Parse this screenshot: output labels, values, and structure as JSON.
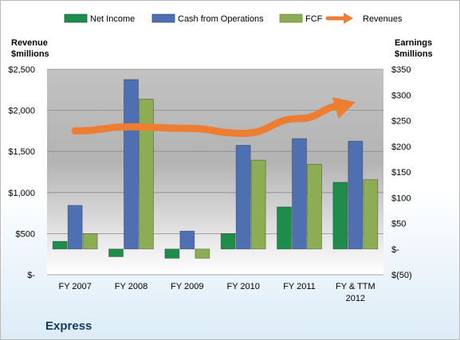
{
  "chart_data": {
    "type": "bar",
    "company": "Express",
    "categories": [
      {
        "line1": "FY 2007",
        "line2": ""
      },
      {
        "line1": "FY 2008",
        "line2": ""
      },
      {
        "line1": "FY 2009",
        "line2": ""
      },
      {
        "line1": "FY 2010",
        "line2": ""
      },
      {
        "line1": "FY 2011",
        "line2": ""
      },
      {
        "line1": "FY & TTM",
        "line2": "2012"
      }
    ],
    "left_axis": {
      "label_line1": "Revenue",
      "label_line2": "$millions",
      "range": [
        0,
        2500
      ],
      "ticks": [
        0,
        500,
        1000,
        1500,
        2000,
        2500
      ],
      "tick_labels": [
        "$-",
        "$500",
        "$1,000",
        "$1,500",
        "$2,000",
        "$2,500"
      ]
    },
    "right_axis": {
      "label_line1": "Earnings",
      "label_line2": "$millions",
      "range": [
        -50,
        350
      ],
      "ticks": [
        -50,
        0,
        50,
        100,
        150,
        200,
        250,
        300,
        350
      ],
      "tick_labels": [
        "$(50)",
        "$-",
        "$50",
        "$100",
        "$150",
        "$200",
        "$250",
        "$300",
        "$350"
      ]
    },
    "series": [
      {
        "name": "Net Income",
        "axis": "right",
        "color": "#1e8c4a",
        "values": [
          15,
          -15,
          -18,
          30,
          82,
          130
        ]
      },
      {
        "name": "Cash from Operations",
        "axis": "right",
        "color": "#4f6fb3",
        "values": [
          85,
          330,
          35,
          202,
          215,
          210
        ]
      },
      {
        "name": "FCF",
        "axis": "right",
        "color": "#8cad53",
        "values": [
          30,
          292,
          -18,
          173,
          165,
          135
        ]
      },
      {
        "name": "Revenues",
        "axis": "left",
        "type": "line",
        "color": "#ed7d31",
        "values": [
          1750,
          1800,
          1780,
          1720,
          1900,
          2100
        ]
      }
    ],
    "grid": true,
    "legend_position": "top"
  }
}
